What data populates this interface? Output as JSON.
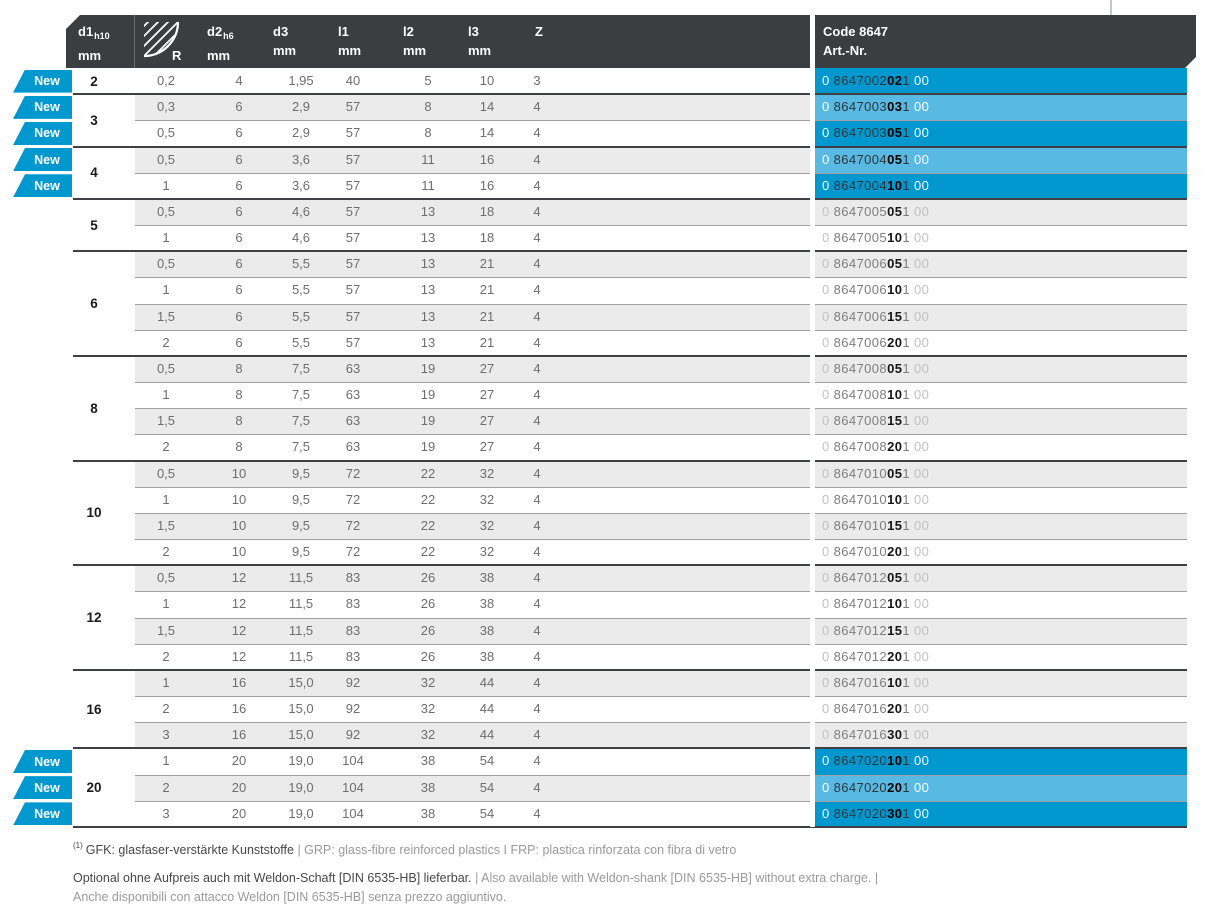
{
  "columns": {
    "d1": {
      "label": "d1",
      "sub": "h10",
      "unit": "mm"
    },
    "r": {
      "icon": "corner-radius-icon",
      "label": "R"
    },
    "d2": {
      "label": "d2",
      "sub": "h6",
      "unit": "mm"
    },
    "d3": {
      "label": "d3",
      "unit": "mm"
    },
    "l1": {
      "label": "l1",
      "unit": "mm"
    },
    "l2": {
      "label": "l2",
      "unit": "mm"
    },
    "l3": {
      "label": "l3",
      "unit": "mm"
    },
    "z": {
      "label": "Z"
    }
  },
  "code_header": {
    "title": "Code 8647",
    "subtitle": "Art.-Nr."
  },
  "badge_label": "New",
  "groups": [
    {
      "d1": "2",
      "rows": [
        {
          "new": true,
          "r": "0,2",
          "d2": "4",
          "d3": "1,95",
          "l1": "40",
          "l2": "5",
          "l3": "10",
          "z": "3",
          "art": {
            "pre": "0",
            "body": "8647002",
            "bold": "02",
            "post": "1",
            "suf": "00"
          }
        }
      ]
    },
    {
      "d1": "3",
      "rows": [
        {
          "new": true,
          "r": "0,3",
          "d2": "6",
          "d3": "2,9",
          "l1": "57",
          "l2": "8",
          "l3": "14",
          "z": "4",
          "art": {
            "pre": "0",
            "body": "8647003",
            "bold": "03",
            "post": "1",
            "suf": "00"
          }
        },
        {
          "new": true,
          "r": "0,5",
          "d2": "6",
          "d3": "2,9",
          "l1": "57",
          "l2": "8",
          "l3": "14",
          "z": "4",
          "art": {
            "pre": "0",
            "body": "8647003",
            "bold": "05",
            "post": "1",
            "suf": "00"
          }
        }
      ]
    },
    {
      "d1": "4",
      "rows": [
        {
          "new": true,
          "r": "0,5",
          "d2": "6",
          "d3": "3,6",
          "l1": "57",
          "l2": "11",
          "l3": "16",
          "z": "4",
          "art": {
            "pre": "0",
            "body": "8647004",
            "bold": "05",
            "post": "1",
            "suf": "00"
          }
        },
        {
          "new": true,
          "r": "1",
          "d2": "6",
          "d3": "3,6",
          "l1": "57",
          "l2": "11",
          "l3": "16",
          "z": "4",
          "art": {
            "pre": "0",
            "body": "8647004",
            "bold": "10",
            "post": "1",
            "suf": "00"
          }
        }
      ]
    },
    {
      "d1": "5",
      "rows": [
        {
          "new": false,
          "r": "0,5",
          "d2": "6",
          "d3": "4,6",
          "l1": "57",
          "l2": "13",
          "l3": "18",
          "z": "4",
          "art": {
            "pre": "0",
            "body": "8647005",
            "bold": "05",
            "post": "1",
            "suf": "00"
          }
        },
        {
          "new": false,
          "r": "1",
          "d2": "6",
          "d3": "4,6",
          "l1": "57",
          "l2": "13",
          "l3": "18",
          "z": "4",
          "art": {
            "pre": "0",
            "body": "8647005",
            "bold": "10",
            "post": "1",
            "suf": "00"
          }
        }
      ]
    },
    {
      "d1": "6",
      "rows": [
        {
          "new": false,
          "r": "0,5",
          "d2": "6",
          "d3": "5,5",
          "l1": "57",
          "l2": "13",
          "l3": "21",
          "z": "4",
          "art": {
            "pre": "0",
            "body": "8647006",
            "bold": "05",
            "post": "1",
            "suf": "00"
          }
        },
        {
          "new": false,
          "r": "1",
          "d2": "6",
          "d3": "5,5",
          "l1": "57",
          "l2": "13",
          "l3": "21",
          "z": "4",
          "art": {
            "pre": "0",
            "body": "8647006",
            "bold": "10",
            "post": "1",
            "suf": "00"
          }
        },
        {
          "new": false,
          "r": "1,5",
          "d2": "6",
          "d3": "5,5",
          "l1": "57",
          "l2": "13",
          "l3": "21",
          "z": "4",
          "art": {
            "pre": "0",
            "body": "8647006",
            "bold": "15",
            "post": "1",
            "suf": "00"
          }
        },
        {
          "new": false,
          "r": "2",
          "d2": "6",
          "d3": "5,5",
          "l1": "57",
          "l2": "13",
          "l3": "21",
          "z": "4",
          "art": {
            "pre": "0",
            "body": "8647006",
            "bold": "20",
            "post": "1",
            "suf": "00"
          }
        }
      ]
    },
    {
      "d1": "8",
      "rows": [
        {
          "new": false,
          "r": "0,5",
          "d2": "8",
          "d3": "7,5",
          "l1": "63",
          "l2": "19",
          "l3": "27",
          "z": "4",
          "art": {
            "pre": "0",
            "body": "8647008",
            "bold": "05",
            "post": "1",
            "suf": "00"
          }
        },
        {
          "new": false,
          "r": "1",
          "d2": "8",
          "d3": "7,5",
          "l1": "63",
          "l2": "19",
          "l3": "27",
          "z": "4",
          "art": {
            "pre": "0",
            "body": "8647008",
            "bold": "10",
            "post": "1",
            "suf": "00"
          }
        },
        {
          "new": false,
          "r": "1,5",
          "d2": "8",
          "d3": "7,5",
          "l1": "63",
          "l2": "19",
          "l3": "27",
          "z": "4",
          "art": {
            "pre": "0",
            "body": "8647008",
            "bold": "15",
            "post": "1",
            "suf": "00"
          }
        },
        {
          "new": false,
          "r": "2",
          "d2": "8",
          "d3": "7,5",
          "l1": "63",
          "l2": "19",
          "l3": "27",
          "z": "4",
          "art": {
            "pre": "0",
            "body": "8647008",
            "bold": "20",
            "post": "1",
            "suf": "00"
          }
        }
      ]
    },
    {
      "d1": "10",
      "rows": [
        {
          "new": false,
          "r": "0,5",
          "d2": "10",
          "d3": "9,5",
          "l1": "72",
          "l2": "22",
          "l3": "32",
          "z": "4",
          "art": {
            "pre": "0",
            "body": "8647010",
            "bold": "05",
            "post": "1",
            "suf": "00"
          }
        },
        {
          "new": false,
          "r": "1",
          "d2": "10",
          "d3": "9,5",
          "l1": "72",
          "l2": "22",
          "l3": "32",
          "z": "4",
          "art": {
            "pre": "0",
            "body": "8647010",
            "bold": "10",
            "post": "1",
            "suf": "00"
          }
        },
        {
          "new": false,
          "r": "1,5",
          "d2": "10",
          "d3": "9,5",
          "l1": "72",
          "l2": "22",
          "l3": "32",
          "z": "4",
          "art": {
            "pre": "0",
            "body": "8647010",
            "bold": "15",
            "post": "1",
            "suf": "00"
          }
        },
        {
          "new": false,
          "r": "2",
          "d2": "10",
          "d3": "9,5",
          "l1": "72",
          "l2": "22",
          "l3": "32",
          "z": "4",
          "art": {
            "pre": "0",
            "body": "8647010",
            "bold": "20",
            "post": "1",
            "suf": "00"
          }
        }
      ]
    },
    {
      "d1": "12",
      "rows": [
        {
          "new": false,
          "r": "0,5",
          "d2": "12",
          "d3": "11,5",
          "l1": "83",
          "l2": "26",
          "l3": "38",
          "z": "4",
          "art": {
            "pre": "0",
            "body": "8647012",
            "bold": "05",
            "post": "1",
            "suf": "00"
          }
        },
        {
          "new": false,
          "r": "1",
          "d2": "12",
          "d3": "11,5",
          "l1": "83",
          "l2": "26",
          "l3": "38",
          "z": "4",
          "art": {
            "pre": "0",
            "body": "8647012",
            "bold": "10",
            "post": "1",
            "suf": "00"
          }
        },
        {
          "new": false,
          "r": "1,5",
          "d2": "12",
          "d3": "11,5",
          "l1": "83",
          "l2": "26",
          "l3": "38",
          "z": "4",
          "art": {
            "pre": "0",
            "body": "8647012",
            "bold": "15",
            "post": "1",
            "suf": "00"
          }
        },
        {
          "new": false,
          "r": "2",
          "d2": "12",
          "d3": "11,5",
          "l1": "83",
          "l2": "26",
          "l3": "38",
          "z": "4",
          "art": {
            "pre": "0",
            "body": "8647012",
            "bold": "20",
            "post": "1",
            "suf": "00"
          }
        }
      ]
    },
    {
      "d1": "16",
      "rows": [
        {
          "new": false,
          "r": "1",
          "d2": "16",
          "d3": "15,0",
          "l1": "92",
          "l2": "32",
          "l3": "44",
          "z": "4",
          "art": {
            "pre": "0",
            "body": "8647016",
            "bold": "10",
            "post": "1",
            "suf": "00"
          }
        },
        {
          "new": false,
          "r": "2",
          "d2": "16",
          "d3": "15,0",
          "l1": "92",
          "l2": "32",
          "l3": "44",
          "z": "4",
          "art": {
            "pre": "0",
            "body": "8647016",
            "bold": "20",
            "post": "1",
            "suf": "00"
          }
        },
        {
          "new": false,
          "r": "3",
          "d2": "16",
          "d3": "15,0",
          "l1": "92",
          "l2": "32",
          "l3": "44",
          "z": "4",
          "art": {
            "pre": "0",
            "body": "8647016",
            "bold": "30",
            "post": "1",
            "suf": "00"
          }
        }
      ]
    },
    {
      "d1": "20",
      "rows": [
        {
          "new": true,
          "r": "1",
          "d2": "20",
          "d3": "19,0",
          "l1": "104",
          "l2": "38",
          "l3": "54",
          "z": "4",
          "art": {
            "pre": "0",
            "body": "8647020",
            "bold": "10",
            "post": "1",
            "suf": "00"
          }
        },
        {
          "new": true,
          "r": "2",
          "d2": "20",
          "d3": "19,0",
          "l1": "104",
          "l2": "38",
          "l3": "54",
          "z": "4",
          "art": {
            "pre": "0",
            "body": "8647020",
            "bold": "20",
            "post": "1",
            "suf": "00"
          }
        },
        {
          "new": true,
          "r": "3",
          "d2": "20",
          "d3": "19,0",
          "l1": "104",
          "l2": "38",
          "l3": "54",
          "z": "4",
          "art": {
            "pre": "0",
            "body": "8647020",
            "bold": "30",
            "post": "1",
            "suf": "00"
          }
        }
      ]
    }
  ],
  "footnotes": {
    "marker": "(1)",
    "line1_dark": "GFK: glasfaser-verstärkte Kunststoffe ",
    "line1_light": "| GRP: glass-fibre reinforced plastics I FRP: plastica rinforzata con fibra di vetro",
    "line2_dark": "Optional ohne Aufpreis auch mit Weldon-Schaft [DIN 6535-HB] lieferbar. ",
    "line2_light": "| Also available with Weldon-shank [DIN 6535-HB] without extra charge. |",
    "line3_light": "Anche disponibili con attacco Weldon [DIN 6535-HB] senza prezzo aggiuntivo."
  },
  "colors": {
    "accent_blue": "#0098CF",
    "accent_blue_light": "#58B9E2",
    "header_bg": "#3A3E41",
    "row_alt_gray": "#EBEBEB",
    "row_line": "#A1A1A1",
    "group_line": "#3E4144"
  }
}
